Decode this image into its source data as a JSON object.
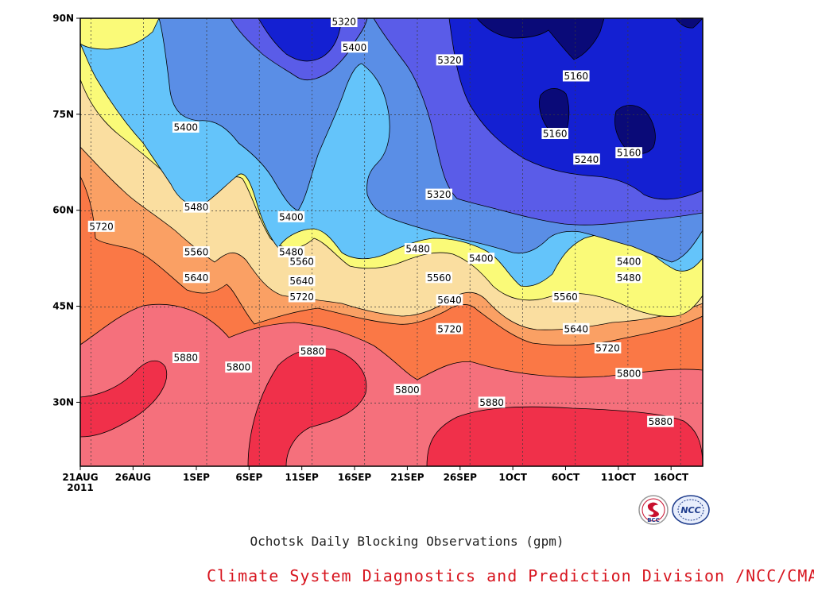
{
  "chart_data": {
    "type": "heatmap",
    "title": "Ochotsk Daily Blocking Observations (gpm)",
    "variable_unit": "gpm",
    "x_ticks": [
      "21AUG",
      "26AUG",
      "1SEP",
      "6SEP",
      "11SEP",
      "16SEP",
      "21SEP",
      "26SEP",
      "1OCT",
      "6OCT",
      "11OCT",
      "16OCT"
    ],
    "x_year_label": "2011",
    "x_range": [
      "2011-08-21",
      "2011-10-19"
    ],
    "y_ticks": [
      "30N",
      "45N",
      "60N",
      "75N",
      "90N"
    ],
    "y_range": [
      20,
      90
    ],
    "grid": true,
    "contour_levels": [
      5160,
      5240,
      5320,
      5400,
      5480,
      5560,
      5640,
      5720,
      5800,
      5880
    ],
    "fill_colors": [
      "#0a0a78",
      "#1420d2",
      "#3a3de0",
      "#5a5ce8",
      "#5a8ee6",
      "#64c4fa",
      "#fafa78",
      "#fadea0",
      "#faa064",
      "#fa7846",
      "#f5707c",
      "#f0304a"
    ],
    "contour_labels": [
      {
        "value": 5880,
        "date": "2011-08-31",
        "lat": 37
      },
      {
        "value": 5880,
        "date": "2011-09-12",
        "lat": 38
      },
      {
        "value": 5880,
        "date": "2011-09-29",
        "lat": 30
      },
      {
        "value": 5880,
        "date": "2011-10-15",
        "lat": 27
      },
      {
        "value": 5800,
        "date": "2011-09-05",
        "lat": 35.5
      },
      {
        "value": 5800,
        "date": "2011-09-21",
        "lat": 32
      },
      {
        "value": 5800,
        "date": "2011-10-12",
        "lat": 34.5
      },
      {
        "value": 5720,
        "date": "2011-08-23",
        "lat": 57.5
      },
      {
        "value": 5720,
        "date": "2011-09-11",
        "lat": 46.5
      },
      {
        "value": 5720,
        "date": "2011-09-25",
        "lat": 41.5
      },
      {
        "value": 5720,
        "date": "2011-10-10",
        "lat": 38.5
      },
      {
        "value": 5640,
        "date": "2011-09-01",
        "lat": 49.5
      },
      {
        "value": 5640,
        "date": "2011-09-11",
        "lat": 49
      },
      {
        "value": 5640,
        "date": "2011-09-25",
        "lat": 46
      },
      {
        "value": 5640,
        "date": "2011-10-07",
        "lat": 41.5
      },
      {
        "value": 5560,
        "date": "2011-09-01",
        "lat": 53.5
      },
      {
        "value": 5560,
        "date": "2011-09-11",
        "lat": 52
      },
      {
        "value": 5560,
        "date": "2011-09-24",
        "lat": 49.5
      },
      {
        "value": 5560,
        "date": "2011-10-06",
        "lat": 46.5
      },
      {
        "value": 5480,
        "date": "2011-09-01",
        "lat": 60.5
      },
      {
        "value": 5480,
        "date": "2011-09-10",
        "lat": 53.5
      },
      {
        "value": 5480,
        "date": "2011-09-22",
        "lat": 54
      },
      {
        "value": 5480,
        "date": "2011-10-12",
        "lat": 49.5
      },
      {
        "value": 5400,
        "date": "2011-08-31",
        "lat": 73
      },
      {
        "value": 5400,
        "date": "2011-09-10",
        "lat": 59
      },
      {
        "value": 5400,
        "date": "2011-09-16",
        "lat": 85.5
      },
      {
        "value": 5400,
        "date": "2011-09-28",
        "lat": 52.5
      },
      {
        "value": 5400,
        "date": "2011-10-12",
        "lat": 52
      },
      {
        "value": 5320,
        "date": "2011-09-15",
        "lat": 89.5
      },
      {
        "value": 5320,
        "date": "2011-09-25",
        "lat": 83.5
      },
      {
        "value": 5320,
        "date": "2011-09-24",
        "lat": 62.5
      },
      {
        "value": 5240,
        "date": "2011-10-08",
        "lat": 68
      },
      {
        "value": 5160,
        "date": "2011-10-07",
        "lat": 81
      },
      {
        "value": 5160,
        "date": "2011-10-05",
        "lat": 72
      },
      {
        "value": 5160,
        "date": "2011-10-12",
        "lat": 69
      }
    ]
  },
  "footer": {
    "credit": "Climate System Diagnostics and Prediction Division /NCC/CMA",
    "logos": [
      "BCC",
      "NCC"
    ]
  }
}
